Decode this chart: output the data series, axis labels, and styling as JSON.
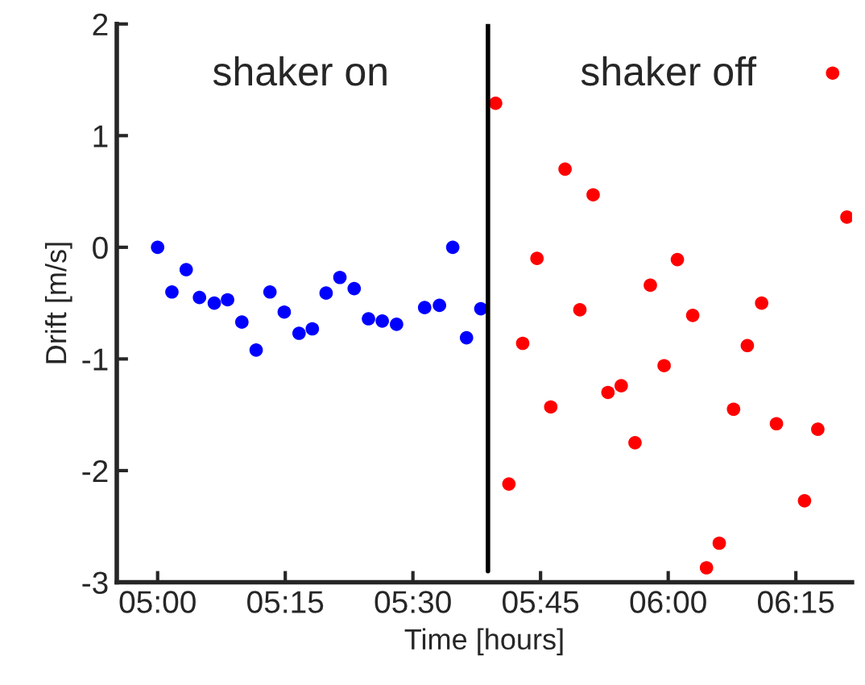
{
  "chart_data": {
    "type": "scatter",
    "xlabel": "Time [hours]",
    "ylabel": "Drift [m/s]",
    "annotations": [
      "shaker on",
      "shaker off"
    ],
    "series": [
      {
        "color": "#0000ff",
        "x": [
          5.0,
          5.028,
          5.056,
          5.082,
          5.111,
          5.137,
          5.165,
          5.193,
          5.22,
          5.248,
          5.277,
          5.303,
          5.33,
          5.357,
          5.385,
          5.413,
          5.44,
          5.468,
          5.523,
          5.552,
          5.578,
          5.605,
          5.633
        ],
        "values": [
          0.0,
          -0.4,
          -0.2,
          -0.45,
          -0.5,
          -0.47,
          -0.67,
          -0.92,
          -0.4,
          -0.58,
          -0.77,
          -0.73,
          -0.41,
          -0.27,
          -0.37,
          -0.64,
          -0.66,
          -0.69,
          -0.54,
          -0.52,
          0.0,
          -0.81,
          -0.55
        ]
      },
      {
        "color": "#ff0000",
        "x": [
          5.662,
          5.688,
          5.715,
          5.743,
          5.77,
          5.798,
          5.827,
          5.853,
          5.882,
          5.908,
          5.935,
          5.965,
          5.992,
          6.018,
          6.048,
          6.075,
          6.1,
          6.128,
          6.155,
          6.183,
          6.212,
          6.267,
          6.293,
          6.322,
          6.35
        ],
        "values": [
          1.29,
          -2.12,
          -0.86,
          -0.1,
          -1.43,
          0.7,
          -0.56,
          0.47,
          -1.3,
          -1.24,
          -1.75,
          -0.34,
          -1.06,
          -0.11,
          -0.61,
          -2.87,
          -2.65,
          -1.45,
          -0.88,
          -0.5,
          -1.58,
          -2.27,
          -1.63,
          1.56,
          0.27
        ]
      }
    ],
    "ref_lines": [
      {
        "axis": "x",
        "value": 5.647,
        "color": "#000000"
      }
    ],
    "xlim": [
      4.92,
      6.36
    ],
    "ylim": [
      -3,
      2
    ],
    "xticks": [
      {
        "value": 5.0,
        "label": "05:00"
      },
      {
        "value": 5.25,
        "label": "05:15"
      },
      {
        "value": 5.5,
        "label": "05:30"
      },
      {
        "value": 5.75,
        "label": "05:45"
      },
      {
        "value": 6.0,
        "label": "06:00"
      },
      {
        "value": 6.25,
        "label": "06:15"
      }
    ],
    "yticks": [
      -3,
      -2,
      -1,
      0,
      1,
      2
    ],
    "grid": false,
    "legend": false,
    "marker": "circle"
  }
}
